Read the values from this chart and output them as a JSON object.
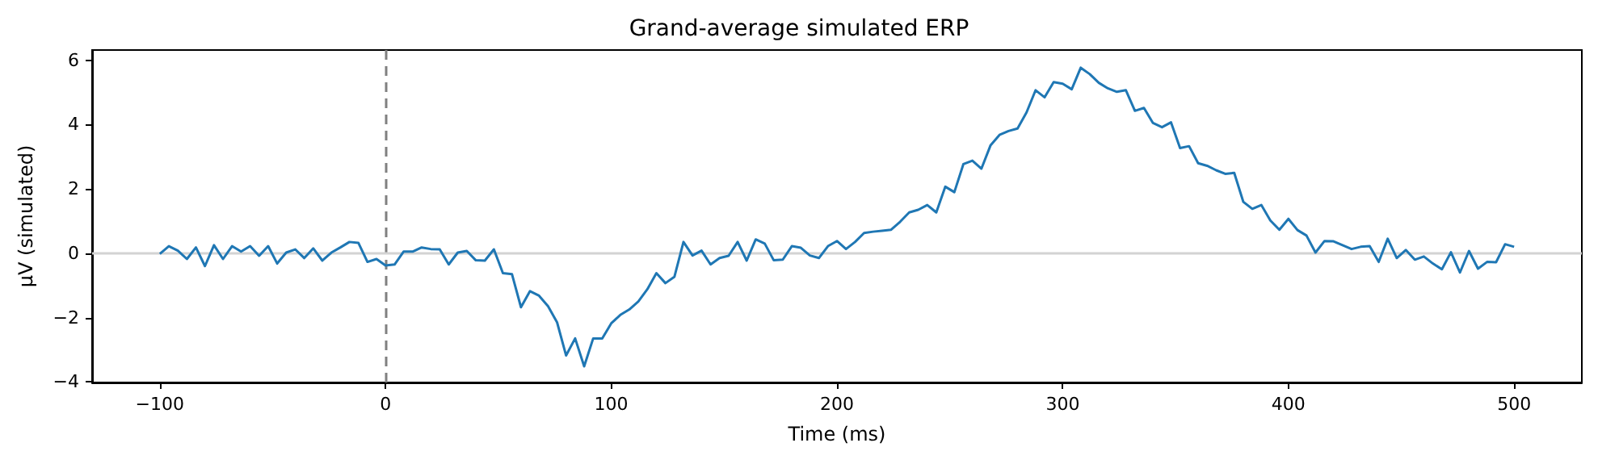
{
  "chart_data": {
    "type": "line",
    "title": "Grand-average simulated ERP",
    "xlabel": "Time (ms)",
    "ylabel": "µV (simulated)",
    "x": [
      -100,
      -96,
      -92,
      -88,
      -84,
      -80,
      -76,
      -72,
      -68,
      -64,
      -60,
      -56,
      -52,
      -48,
      -44,
      -40,
      -36,
      -32,
      -28,
      -24,
      -20,
      -16,
      -12,
      -8,
      -4,
      0,
      4,
      8,
      12,
      16,
      20,
      24,
      28,
      32,
      36,
      40,
      44,
      48,
      52,
      56,
      60,
      64,
      68,
      72,
      76,
      80,
      84,
      88,
      92,
      96,
      100,
      104,
      108,
      112,
      116,
      120,
      124,
      128,
      132,
      136,
      140,
      144,
      148,
      152,
      156,
      160,
      164,
      168,
      172,
      176,
      180,
      184,
      188,
      192,
      196,
      200,
      204,
      208,
      212,
      216,
      220,
      224,
      228,
      232,
      236,
      240,
      244,
      248,
      252,
      256,
      260,
      264,
      268,
      272,
      276,
      280,
      284,
      288,
      292,
      296,
      300,
      304,
      308,
      312,
      316,
      320,
      324,
      328,
      332,
      336,
      340,
      344,
      348,
      352,
      356,
      360,
      364,
      368,
      372,
      376,
      380,
      384,
      388,
      392,
      396,
      400,
      404,
      408,
      412,
      416,
      420,
      424,
      428,
      432,
      436,
      440,
      444,
      448,
      452,
      456,
      460,
      464,
      468,
      472,
      476,
      480,
      484,
      488,
      492,
      496,
      500
    ],
    "series": [
      {
        "color": "#1f77b4",
        "values": [
          -0.02,
          0.22,
          0.08,
          -0.18,
          0.18,
          -0.4,
          0.25,
          -0.18,
          0.22,
          0.05,
          0.22,
          -0.08,
          0.22,
          -0.32,
          0.02,
          0.12,
          -0.15,
          0.15,
          -0.23,
          0.02,
          0.18,
          0.35,
          0.32,
          -0.27,
          -0.18,
          -0.38,
          -0.35,
          0.05,
          0.05,
          0.18,
          0.13,
          0.12,
          -0.35,
          0.02,
          0.07,
          -0.22,
          -0.23,
          0.12,
          -0.62,
          -0.65,
          -1.68,
          -1.18,
          -1.32,
          -1.65,
          -2.15,
          -3.18,
          -2.65,
          -3.52,
          -2.65,
          -2.65,
          -2.18,
          -1.92,
          -1.75,
          -1.5,
          -1.12,
          -0.62,
          -0.93,
          -0.73,
          0.35,
          -0.07,
          0.08,
          -0.35,
          -0.15,
          -0.08,
          0.35,
          -0.23,
          0.43,
          0.3,
          -0.22,
          -0.2,
          0.22,
          0.17,
          -0.07,
          -0.15,
          0.22,
          0.38,
          0.13,
          0.35,
          0.63,
          0.67,
          0.7,
          0.73,
          0.98,
          1.27,
          1.35,
          1.5,
          1.27,
          2.07,
          1.9,
          2.77,
          2.88,
          2.63,
          3.35,
          3.68,
          3.8,
          3.88,
          4.38,
          5.07,
          4.85,
          5.32,
          5.27,
          5.1,
          5.77,
          5.57,
          5.3,
          5.13,
          5.02,
          5.07,
          4.43,
          4.52,
          4.05,
          3.92,
          4.07,
          3.27,
          3.33,
          2.8,
          2.72,
          2.58,
          2.47,
          2.5,
          1.6,
          1.38,
          1.5,
          1.02,
          0.73,
          1.07,
          0.72,
          0.55,
          0.02,
          0.38,
          0.37,
          0.25,
          0.13,
          0.2,
          0.22,
          -0.27,
          0.45,
          -0.15,
          0.1,
          -0.2,
          -0.1,
          -0.32,
          -0.5,
          0.03,
          -0.6,
          0.07,
          -0.48,
          -0.27,
          -0.28,
          0.28,
          0.2
        ]
      }
    ],
    "xlim": [
      -130,
      530
    ],
    "xticks": [
      -100,
      0,
      100,
      200,
      300,
      400,
      500
    ],
    "ylim": [
      -4.02,
      6.32
    ],
    "yticks": [
      -4,
      -2,
      0,
      2,
      4,
      6
    ],
    "ref_lines": [
      {
        "axis": "x",
        "value": 0,
        "color": "#808080",
        "line_style": "dashed"
      },
      {
        "axis": "y",
        "value": 0,
        "color": "#d3d3d3",
        "line_style": "solid"
      }
    ],
    "grid": false,
    "marker": "none",
    "line_style": "solid"
  }
}
